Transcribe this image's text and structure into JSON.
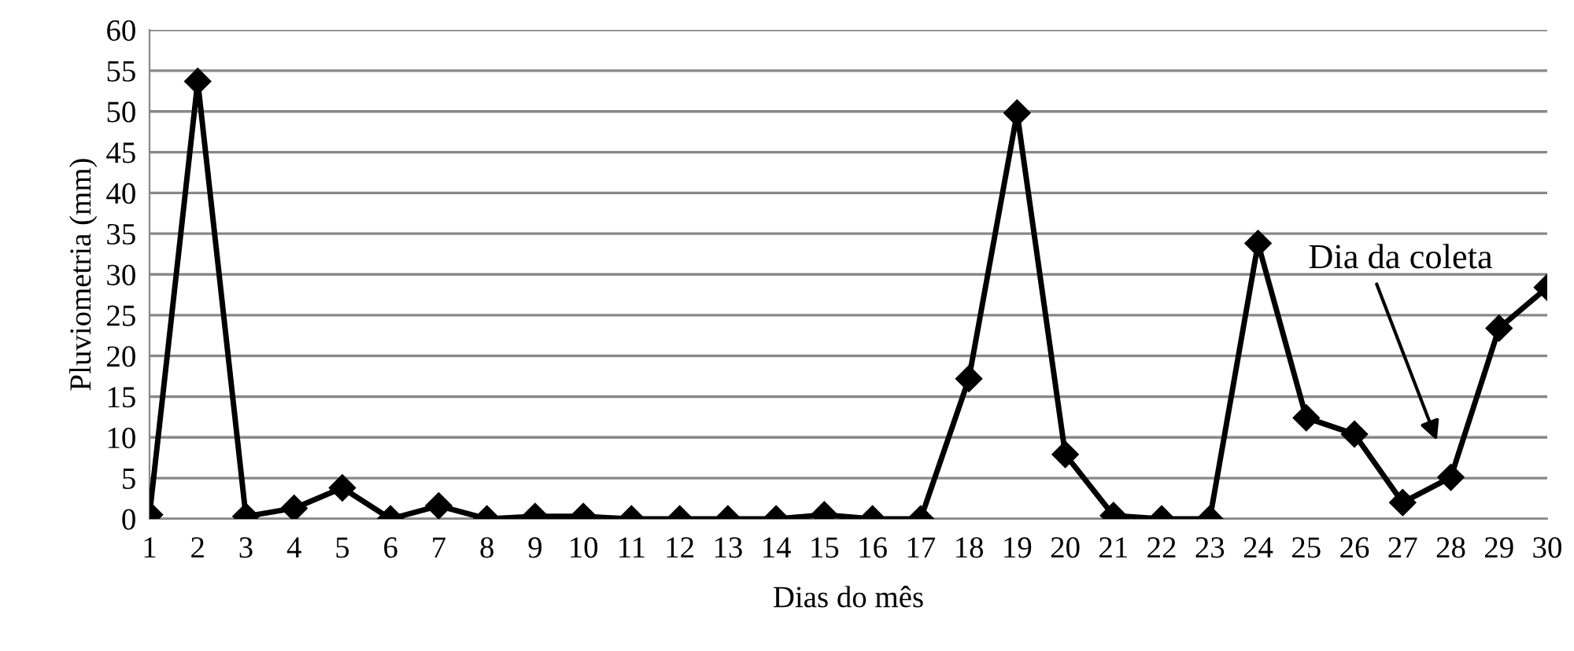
{
  "chart_data": {
    "type": "line",
    "ylabel": "Pluviometria (mm)",
    "xlabel": "Dias do mês",
    "categories": [
      "1",
      "2",
      "3",
      "4",
      "5",
      "6",
      "7",
      "8",
      "9",
      "10",
      "11",
      "12",
      "13",
      "14",
      "15",
      "16",
      "17",
      "18",
      "19",
      "20",
      "21",
      "22",
      "23",
      "24",
      "25",
      "26",
      "27",
      "28",
      "29",
      "30"
    ],
    "series": [
      {
        "color": "#000000",
        "values": [
          0.5,
          53.7,
          0.3,
          1.3,
          3.8,
          0,
          1.6,
          0,
          0.3,
          0.3,
          0,
          0,
          0,
          0,
          0.5,
          0,
          0,
          17.2,
          49.8,
          7.9,
          0.4,
          0,
          0,
          33.8,
          12.4,
          10.4,
          2.0,
          5.1,
          23.4,
          28.4
        ]
      }
    ],
    "ylim": [
      0,
      60
    ],
    "yticks": [
      0,
      5,
      10,
      15,
      20,
      25,
      30,
      35,
      40,
      45,
      50,
      55,
      60
    ],
    "grid": "y",
    "marker": "diamond",
    "line_style": "solid",
    "legend": false,
    "annotations": [
      "Dia da coleta"
    ]
  }
}
